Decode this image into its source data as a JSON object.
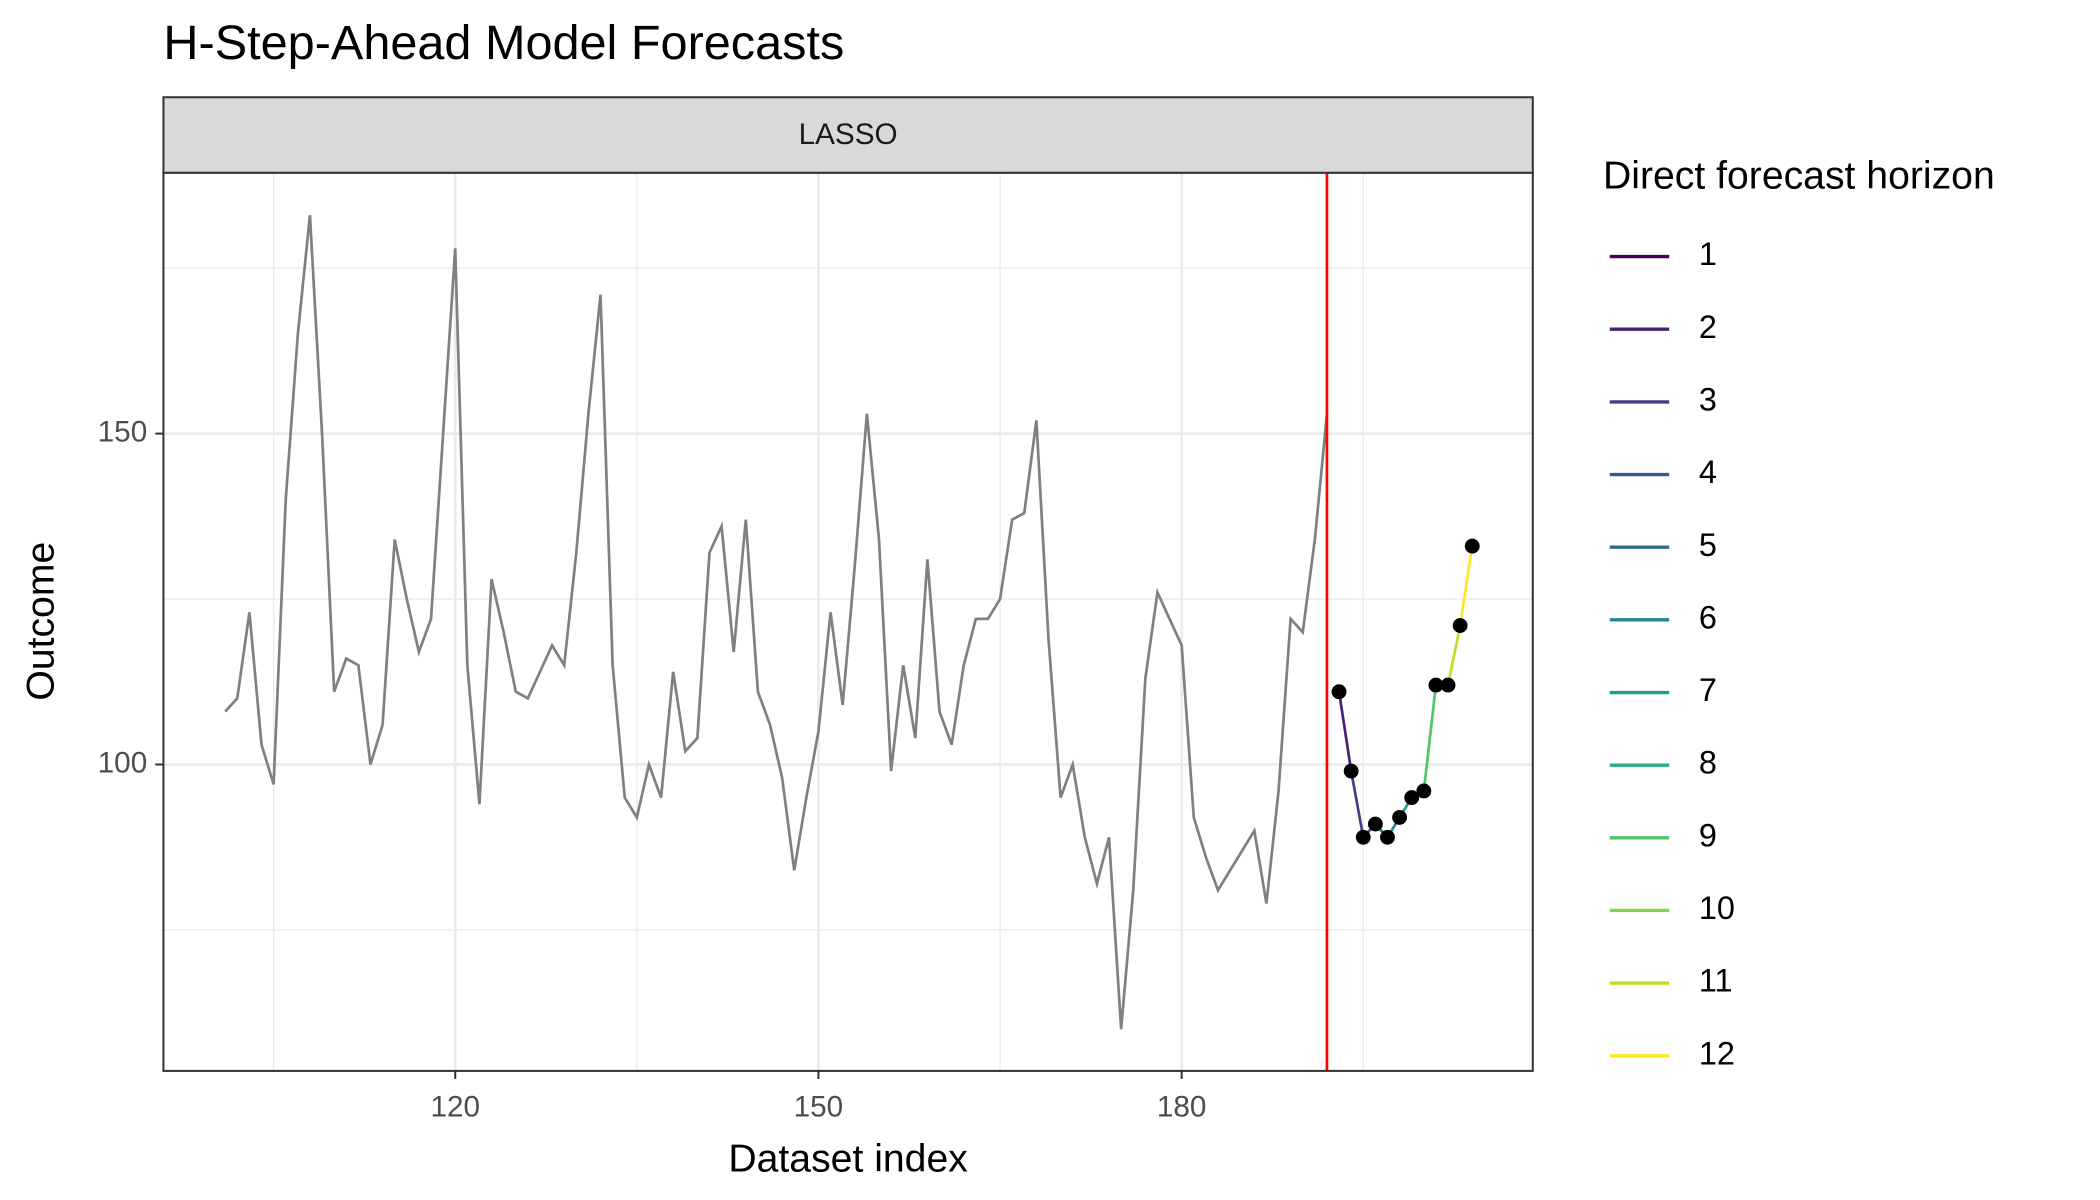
{
  "chart_data": {
    "type": "line",
    "title": "H-Step-Ahead Model Forecasts",
    "facet_label": "LASSO",
    "x_label": "Dataset index",
    "y_label": "Outcome",
    "xlim": [
      95.9,
      209.0
    ],
    "ylim": [
      53.7,
      189.4
    ],
    "xticks": [
      120,
      150,
      180
    ],
    "yticks": [
      100,
      150
    ],
    "x_minor_grid": [
      105,
      135,
      165,
      195
    ],
    "y_minor_grid": [
      75,
      125,
      175
    ],
    "grid": true,
    "observed": {
      "color": "#808080",
      "x": [
        101,
        102,
        103,
        104,
        105,
        106,
        107,
        108,
        109,
        110,
        111,
        112,
        113,
        114,
        115,
        116,
        117,
        118,
        119,
        120,
        121,
        122,
        123,
        124,
        125,
        126,
        127,
        128,
        129,
        130,
        131,
        132,
        133,
        134,
        135,
        136,
        137,
        138,
        139,
        140,
        141,
        142,
        143,
        144,
        145,
        146,
        147,
        148,
        149,
        150,
        151,
        152,
        153,
        154,
        155,
        156,
        157,
        158,
        159,
        160,
        161,
        162,
        163,
        164,
        165,
        166,
        167,
        168,
        169,
        170,
        171,
        172,
        173,
        174,
        175,
        176,
        177,
        178,
        179,
        180,
        181,
        182,
        183,
        184,
        185,
        186,
        187,
        188,
        189,
        190,
        191,
        192
      ],
      "values": [
        108,
        110,
        123,
        103,
        97,
        140,
        165,
        183,
        150,
        111,
        116,
        115,
        100,
        106,
        134,
        125,
        117,
        122,
        150,
        178,
        115,
        94,
        128,
        120,
        111,
        110,
        114,
        118,
        115,
        132,
        153,
        171,
        115,
        95,
        92,
        100,
        95,
        114,
        102,
        104,
        132,
        136,
        117,
        137,
        111,
        106,
        98,
        84,
        95,
        105,
        123,
        109,
        130,
        153,
        134,
        99,
        115,
        104,
        131,
        108,
        103,
        115,
        122,
        122,
        125,
        137,
        138,
        152,
        119,
        95,
        100,
        89,
        82,
        89,
        60,
        81,
        113,
        126,
        122,
        118,
        92,
        86,
        81,
        84,
        87,
        90,
        79,
        96,
        122,
        120,
        134,
        153
      ]
    },
    "cutoff": {
      "x": 192,
      "color": "#ff0000"
    },
    "forecast": {
      "point_color": "#000000",
      "x": [
        193,
        194,
        195,
        196,
        197,
        198,
        199,
        200,
        201,
        202,
        203,
        204
      ],
      "values": [
        111,
        99,
        89,
        91,
        89,
        92,
        95,
        96,
        112,
        112,
        121,
        133
      ],
      "horizon": [
        0,
        1,
        2,
        3,
        4,
        5,
        6,
        7,
        8,
        9,
        10,
        11
      ]
    },
    "legend": {
      "title": "Direct forecast horizon",
      "entries": [
        {
          "label": "1",
          "color": "#440154"
        },
        {
          "label": "2",
          "color": "#482173"
        },
        {
          "label": "3",
          "color": "#433E85"
        },
        {
          "label": "4",
          "color": "#38598C"
        },
        {
          "label": "5",
          "color": "#2D708E"
        },
        {
          "label": "6",
          "color": "#25858E"
        },
        {
          "label": "7",
          "color": "#1E9B8A"
        },
        {
          "label": "8",
          "color": "#2BB07F"
        },
        {
          "label": "9",
          "color": "#51C56A"
        },
        {
          "label": "10",
          "color": "#85D54A"
        },
        {
          "label": "11",
          "color": "#C2DF23"
        },
        {
          "label": "12",
          "color": "#FDE725"
        }
      ]
    }
  }
}
